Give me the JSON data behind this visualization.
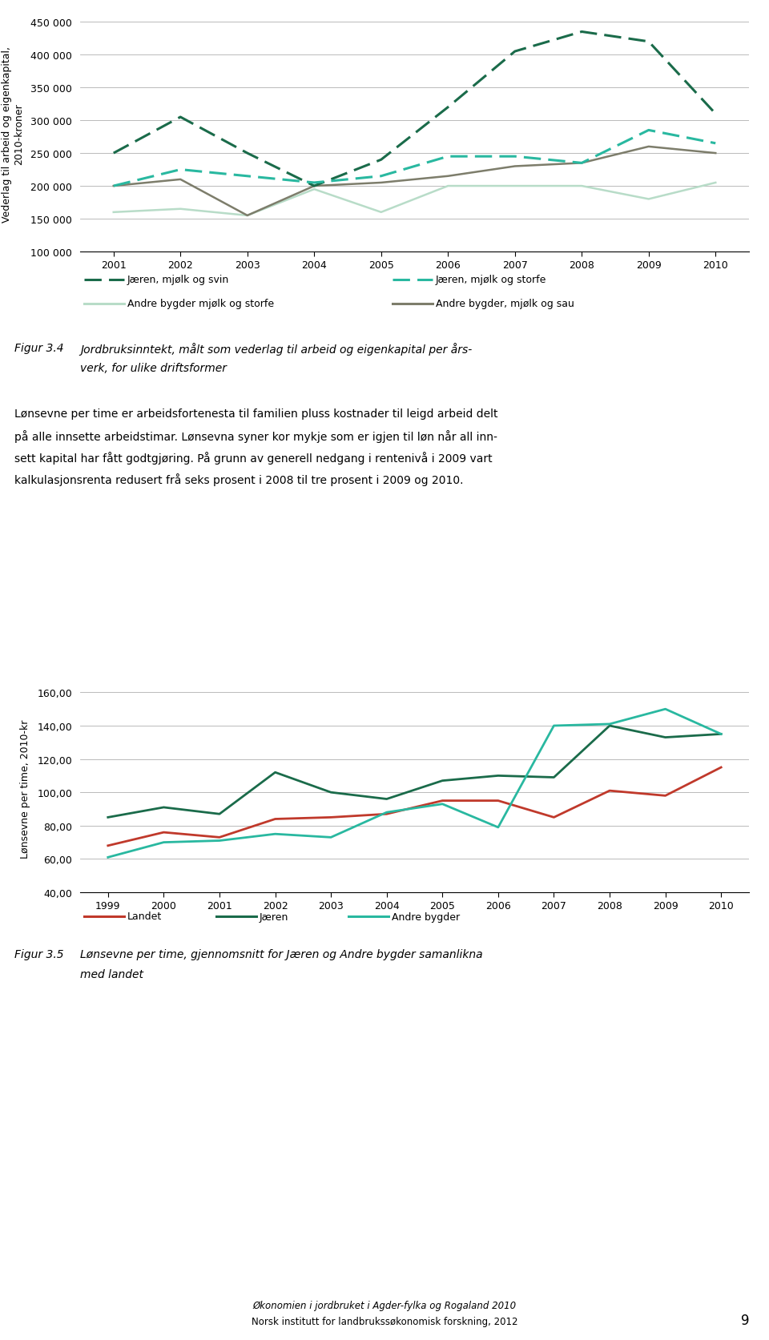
{
  "chart1": {
    "years": [
      2001,
      2002,
      2003,
      2004,
      2005,
      2006,
      2007,
      2008,
      2009,
      2010
    ],
    "jaeren_mjolk_svin": [
      250000,
      305000,
      250000,
      200000,
      240000,
      320000,
      405000,
      435000,
      420000,
      310000
    ],
    "jaeren_mjolk_storfe": [
      200000,
      225000,
      215000,
      205000,
      215000,
      245000,
      245000,
      235000,
      285000,
      265000
    ],
    "andre_bygder_mjolk_storfe": [
      160000,
      165000,
      155000,
      195000,
      160000,
      200000,
      200000,
      200000,
      180000,
      205000
    ],
    "andre_bygder_mjolk_sau": [
      200000,
      210000,
      155000,
      200000,
      205000,
      215000,
      230000,
      235000,
      260000,
      250000
    ],
    "ylabel": "Vederlag til arbeid og eigenkapital,\n2010-kroner",
    "ylim": [
      100000,
      460000
    ],
    "yticks": [
      100000,
      150000,
      200000,
      250000,
      300000,
      350000,
      400000,
      450000
    ],
    "ytick_labels": [
      "100 000",
      "150 000",
      "200 000",
      "250 000",
      "300 000",
      "350 000",
      "400 000",
      "450 000"
    ],
    "legend": {
      "jaeren_mjolk_svin": "Jæren, mjølk og svin",
      "jaeren_mjolk_storfe": "Jæren, mjølk og storfe",
      "andre_bygder_mjolk_storfe": "Andre bygder mjølk og storfe",
      "andre_bygder_mjolk_sau": "Andre bygder, mjølk og sau"
    },
    "colors": {
      "jaeren_mjolk_svin": "#1a6b4a",
      "jaeren_mjolk_storfe": "#29b8a0",
      "andre_bygder_mjolk_storfe": "#b8dcc8",
      "andre_bygder_mjolk_sau": "#7d7d6b"
    }
  },
  "chart2": {
    "years": [
      1999,
      2000,
      2001,
      2002,
      2003,
      2004,
      2005,
      2006,
      2007,
      2008,
      2009,
      2010
    ],
    "landet": [
      68,
      76,
      73,
      84,
      85,
      87,
      95,
      95,
      85,
      101,
      98,
      115
    ],
    "jaeren": [
      85,
      91,
      87,
      112,
      100,
      96,
      107,
      110,
      109,
      140,
      133,
      135
    ],
    "andre_bygder": [
      61,
      70,
      71,
      75,
      73,
      88,
      93,
      79,
      140,
      141,
      150,
      135
    ],
    "ylabel": "Lønsevne per time, 2010-kr",
    "ylim": [
      40,
      165
    ],
    "yticks": [
      40,
      60,
      80,
      100,
      120,
      140,
      160
    ],
    "ytick_labels": [
      "40,00",
      "60,00",
      "80,00",
      "100,00",
      "120,00",
      "140,00",
      "160,00"
    ],
    "legend": {
      "landet": "Landet",
      "jaeren": "Jæren",
      "andre_bygder": "Andre bygder"
    },
    "colors": {
      "landet": "#c0392b",
      "jaeren": "#1a6b4a",
      "andre_bygder": "#29b8a0"
    }
  },
  "figur34_label": "Figur 3.4",
  "figur34_line1": "Jordbruksinntekt, målt som vederlag til arbeid og eigenkapital per års-",
  "figur34_line2": "verk, for ulike driftsformer",
  "body_lines": [
    "Lønsevne per time er arbeidsfortenesta til familien pluss kostnader til leigd arbeid delt",
    "på alle innsette arbeidstimar. Lønsevna syner kor mykje som er igjen til løn når all inn-",
    "sett kapital har fått godtgjøring. På grunn av generell nedgang i rentenivå i 2009 vart",
    "kalkulasjonsrenta redusert frå seks prosent i 2008 til tre prosent i 2009 og 2010."
  ],
  "figur35_label": "Figur 3.5",
  "figur35_line1": "Lønsevne per time, gjennomsnitt for Jæren og Andre bygder samanlikna",
  "figur35_line2": "med landet",
  "footer_text1": "Økonomien i jordbruket i Agder-fylka og Rogaland 2010",
  "footer_text2": "Norsk institutt for landbrukssøkonomisk forskning, 2012",
  "page_number": "9",
  "background_color": "#ffffff"
}
